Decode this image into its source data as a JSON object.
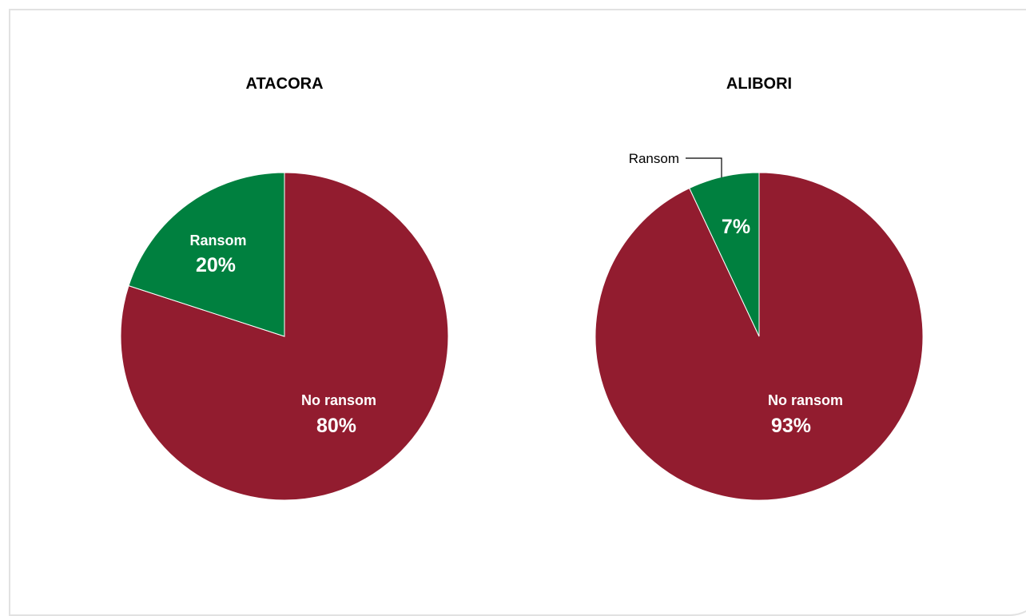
{
  "colors": {
    "no_ransom": "#921c2f",
    "ransom": "#00803f",
    "frame": "#e2e2e2"
  },
  "chart_data": [
    {
      "type": "pie",
      "title": "ATACORA",
      "slices": [
        {
          "label": "No ransom",
          "value": 80,
          "value_label": "80%",
          "color": "#921c2f"
        },
        {
          "label": "Ransom",
          "value": 20,
          "value_label": "20%",
          "color": "#00803f"
        }
      ]
    },
    {
      "type": "pie",
      "title": "ALIBORI",
      "slices": [
        {
          "label": "No ransom",
          "value": 93,
          "value_label": "93%",
          "color": "#921c2f"
        },
        {
          "label": "Ransom",
          "value": 7,
          "value_label": "7%",
          "color": "#00803f"
        }
      ]
    }
  ]
}
